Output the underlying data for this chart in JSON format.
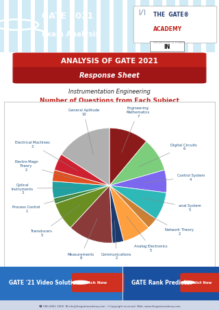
{
  "title_main": "ANALYSIS OF GATE 2021",
  "title_sub": "Response Sheet",
  "subtitle2": "Instrumentation Engineering",
  "chart_title": "Number of Questions from Each Subject",
  "subjects": [
    "Engineering\nMathematics",
    "Digital Circuits",
    "Control System",
    "anal System",
    "Network Theory",
    "Analog Electronics",
    "Communications",
    "Measurements",
    "Transducers",
    "Process Control",
    "Optical\nInstruments",
    "Electro-Magn\nTheory",
    "Electrical Machines",
    "General Aptitude"
  ],
  "values": [
    7,
    6,
    4,
    5,
    2,
    5,
    2,
    8,
    5,
    1,
    3,
    2,
    3,
    10
  ],
  "pie_colors": [
    "#8B1A1A",
    "#7CCD7C",
    "#7B68EE",
    "#2EB8B8",
    "#CD7F32",
    "#FFA040",
    "#1C3A6E",
    "#8B3A3A",
    "#6B8E23",
    "#3A8A3A",
    "#20A0A0",
    "#E05020",
    "#CD2030",
    "#B0B0B0"
  ],
  "header_blue": "#5AAAD0",
  "header_stripe": "#7BC8E8",
  "title_red": "#C0201A",
  "label_color": "#1E5080",
  "chart_bg": "#FFFFFF",
  "footer_blue": "#1A4A7A",
  "footer_split": "#2060A0",
  "white": "#FFFFFF",
  "btn_red": "#D03020",
  "black": "#000000",
  "annotations": [
    [
      0,
      "Engineering\nMathematics\n7",
      0.5,
      1.28
    ],
    [
      1,
      "Digital Circuits\n6",
      1.3,
      0.68
    ],
    [
      2,
      "Control System\n4",
      1.42,
      0.15
    ],
    [
      3,
      "anal System\n5",
      1.4,
      -0.38
    ],
    [
      4,
      "Network Theory\n2",
      1.22,
      -0.8
    ],
    [
      5,
      "Analog Electronics\n5",
      0.72,
      -1.08
    ],
    [
      6,
      "Communications\n2",
      0.12,
      -1.22
    ],
    [
      7,
      "Measurements\n8",
      -0.5,
      -1.22
    ],
    [
      8,
      "Transducers\n5",
      -1.18,
      -0.82
    ],
    [
      9,
      "Process Control\n1",
      -1.45,
      -0.4
    ],
    [
      10,
      "Optical\nInstruments\n3",
      -1.52,
      -0.05
    ],
    [
      11,
      "Electro-Magn\nTheory\n2",
      -1.45,
      0.35
    ],
    [
      12,
      "Electrical Machines\n3",
      -1.35,
      0.72
    ],
    [
      13,
      "General Aptitude\n10",
      -0.45,
      1.28
    ]
  ]
}
